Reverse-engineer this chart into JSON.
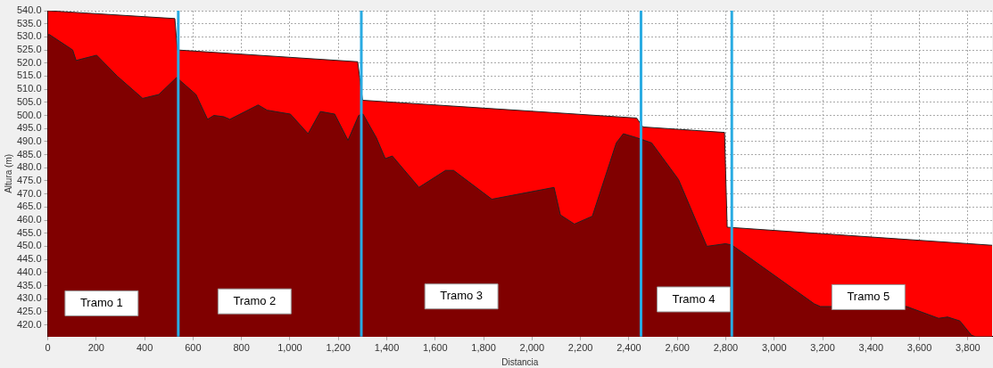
{
  "chart_data": {
    "type": "area",
    "xlabel": "Distancia",
    "ylabel": "Altura (m)",
    "xlim": [
      0,
      3900
    ],
    "ylim": [
      415.5,
      540
    ],
    "xticks": [
      0,
      200,
      400,
      600,
      800,
      {
        "value": 1000,
        "label": "1,000"
      },
      {
        "value": 1200,
        "label": "1,200"
      },
      {
        "value": 1400,
        "label": "1,400"
      },
      {
        "value": 1600,
        "label": "1,600"
      },
      {
        "value": 1800,
        "label": "1,800"
      },
      {
        "value": 2000,
        "label": "2,000"
      },
      {
        "value": 2200,
        "label": "2,200"
      },
      {
        "value": 2400,
        "label": "2,400"
      },
      {
        "value": 2600,
        "label": "2,600"
      },
      {
        "value": 2800,
        "label": "2,800"
      },
      {
        "value": 3000,
        "label": "3,000"
      },
      {
        "value": 3200,
        "label": "3,200"
      },
      {
        "value": 3400,
        "label": "3,400"
      },
      {
        "value": 3600,
        "label": "3,600"
      },
      {
        "value": 3800,
        "label": "3,800"
      }
    ],
    "yticks": [
      {
        "value": 420,
        "label": "420.0"
      },
      {
        "value": 425,
        "label": "425.0"
      },
      {
        "value": 430,
        "label": "430.0"
      },
      {
        "value": 435,
        "label": "435.0"
      },
      {
        "value": 440,
        "label": "440.0"
      },
      {
        "value": 445,
        "label": "445.0"
      },
      {
        "value": 450,
        "label": "450.0"
      },
      {
        "value": 455,
        "label": "455.0"
      },
      {
        "value": 460,
        "label": "460.0"
      },
      {
        "value": 465,
        "label": "465.0"
      },
      {
        "value": 470,
        "label": "470.0"
      },
      {
        "value": 475,
        "label": "475.0"
      },
      {
        "value": 480,
        "label": "480.0"
      },
      {
        "value": 485,
        "label": "485.0"
      },
      {
        "value": 490,
        "label": "490.0"
      },
      {
        "value": 495,
        "label": "495.0"
      },
      {
        "value": 500,
        "label": "500.0"
      },
      {
        "value": 505,
        "label": "505.0"
      },
      {
        "value": 510,
        "label": "510.0"
      },
      {
        "value": 515,
        "label": "515.0"
      },
      {
        "value": 520,
        "label": "520.0"
      },
      {
        "value": 525,
        "label": "525.0"
      },
      {
        "value": 530,
        "label": "530.0"
      },
      {
        "value": 535,
        "label": "535.0"
      },
      {
        "value": 540,
        "label": "540.0"
      }
    ],
    "grid": true,
    "legend": false,
    "series": [
      {
        "color": "#ff0000",
        "x": [
          0,
          525,
          535,
          1280,
          1300,
          2432,
          2458,
          2795,
          2806,
          3900
        ],
        "values": [
          540,
          537,
          525,
          520.5,
          505.8,
          499,
          495.6,
          493.5,
          457.3,
          450.4
        ]
      },
      {
        "color": "#800000",
        "x": [
          0,
          5,
          103,
          117,
          202,
          287,
          392,
          459,
          532,
          612,
          660,
          686,
          727,
          752,
          869,
          906,
          1002,
          1075,
          1126,
          1185,
          1240,
          1284,
          1302,
          1357,
          1394,
          1423,
          1533,
          1643,
          1676,
          1834,
          2091,
          2117,
          2175,
          2249,
          2348,
          2377,
          2432,
          2494,
          2605,
          2722,
          2799,
          2825,
          3166,
          3191,
          3239,
          3547,
          3679,
          3716,
          3767,
          3815,
          3830
        ],
        "values": [
          530.5,
          531,
          525,
          521,
          523,
          515,
          506.5,
          508,
          514.5,
          508,
          498.5,
          500,
          499.5,
          498.5,
          504,
          502,
          500.5,
          493,
          501.5,
          500.5,
          490.5,
          500,
          500.5,
          491.5,
          483.5,
          484.5,
          472.5,
          479,
          479,
          468,
          472.5,
          462,
          458.5,
          461.5,
          489.5,
          493,
          491.5,
          489.5,
          475.5,
          450,
          451,
          450.5,
          428,
          427,
          427,
          427,
          422.5,
          423,
          421.5,
          416,
          415.5
        ]
      }
    ],
    "ref_lines": [
      {
        "axis": "x",
        "value": 539,
        "color": "#29abe2"
      },
      {
        "axis": "x",
        "value": 1295,
        "color": "#29abe2"
      },
      {
        "axis": "x",
        "value": 2450,
        "color": "#29abe2"
      },
      {
        "axis": "x",
        "value": 2825,
        "color": "#29abe2"
      }
    ],
    "annotations": [
      "Tramo 1",
      "Tramo 2",
      "Tramo 3",
      "Tramo 4",
      "Tramo 5"
    ]
  }
}
